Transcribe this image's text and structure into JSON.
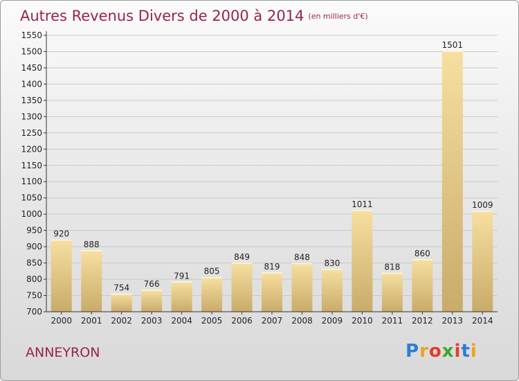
{
  "header": {
    "title": "Autres Revenus Divers de 2000 à 2014",
    "unit": "(en milliers d'€)"
  },
  "commune": "ANNEYRON",
  "logo": {
    "text": "Proxiti",
    "letters": [
      {
        "ch": "P",
        "color": "#2a7fd4"
      },
      {
        "ch": "r",
        "color": "#f0a020"
      },
      {
        "ch": "o",
        "color": "#e83a2a"
      },
      {
        "ch": "x",
        "color": "#3aa82a"
      },
      {
        "ch": "i",
        "color": "#e83a2a"
      },
      {
        "ch": "t",
        "color": "#2a7fd4"
      },
      {
        "ch": "i",
        "color": "#f0a020"
      }
    ]
  },
  "chart_data": {
    "type": "bar",
    "categories": [
      "2000",
      "2001",
      "2002",
      "2003",
      "2004",
      "2005",
      "2006",
      "2007",
      "2008",
      "2009",
      "2010",
      "2011",
      "2012",
      "2013",
      "2014"
    ],
    "values": [
      920,
      888,
      754,
      766,
      791,
      805,
      849,
      819,
      848,
      830,
      1011,
      818,
      860,
      1501,
      1009
    ],
    "ylim": [
      700,
      1550
    ],
    "yticks": [
      700,
      750,
      800,
      850,
      900,
      950,
      1000,
      1050,
      1100,
      1150,
      1200,
      1250,
      1300,
      1350,
      1400,
      1450,
      1500,
      1550
    ],
    "grid": true,
    "colors": {
      "bar_light": "#f6dfa0",
      "bar_dark": "#c9ab6a",
      "grid": "#c8c8c8",
      "axis": "#333333"
    }
  }
}
